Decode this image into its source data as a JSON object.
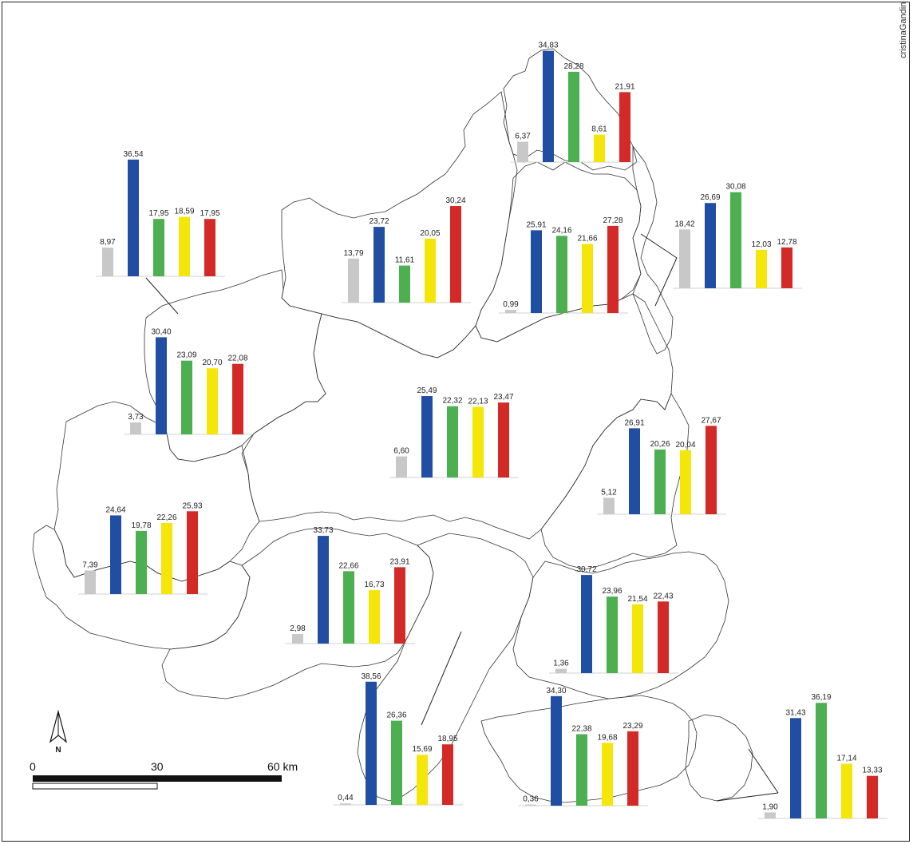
{
  "credit": "cristinaGandini 06",
  "north_label": "N",
  "scale": {
    "labels": [
      "0",
      "30",
      "60 km"
    ]
  },
  "series_colors": [
    "#c8c8c8",
    "#1f4ea3",
    "#4caf50",
    "#f5e60a",
    "#d42a27"
  ],
  "districts": [
    {
      "id": "north-top",
      "values": [
        "6,37",
        "34,83",
        "28,28",
        "8,61",
        "21,91"
      ],
      "nums": [
        6.37,
        34.83,
        28.28,
        8.61,
        21.91
      ]
    },
    {
      "id": "northwest",
      "values": [
        "8,97",
        "36,54",
        "17,95",
        "18,59",
        "17,95"
      ],
      "nums": [
        8.97,
        36.54,
        17.95,
        18.59,
        17.95
      ]
    },
    {
      "id": "north-center",
      "values": [
        "13,79",
        "23,72",
        "11,61",
        "20,05",
        "30,24"
      ],
      "nums": [
        13.79,
        23.72,
        11.61,
        20.05,
        30.24
      ]
    },
    {
      "id": "north-east-inner",
      "values": [
        "0,99",
        "25,91",
        "24,16",
        "21,66",
        "27,28"
      ],
      "nums": [
        0.99,
        25.91,
        24.16,
        21.66,
        27.28
      ]
    },
    {
      "id": "northeast",
      "values": [
        "18,42",
        "26,69",
        "30,08",
        "12,03",
        "12,78"
      ],
      "nums": [
        18.42,
        26.69,
        30.08,
        12.03,
        12.78
      ]
    },
    {
      "id": "west",
      "values": [
        "3,73",
        "30,40",
        "23,09",
        "20,70",
        "22,08"
      ],
      "nums": [
        3.73,
        30.4,
        23.09,
        20.7,
        22.08
      ]
    },
    {
      "id": "center",
      "values": [
        "6,60",
        "25,49",
        "22,32",
        "22,13",
        "23,47"
      ],
      "nums": [
        6.6,
        25.49,
        22.32,
        22.13,
        23.47
      ]
    },
    {
      "id": "east",
      "values": [
        "5,12",
        "26,91",
        "20,26",
        "20,04",
        "27,67"
      ],
      "nums": [
        5.12,
        26.91,
        20.26,
        20.04,
        27.67
      ]
    },
    {
      "id": "southwest",
      "values": [
        "7,39",
        "24,64",
        "19,78",
        "22,26",
        "25,93"
      ],
      "nums": [
        7.39,
        24.64,
        19.78,
        22.26,
        25.93
      ]
    },
    {
      "id": "south-center",
      "values": [
        "2,98",
        "33,73",
        "22,66",
        "16,73",
        "23,91"
      ],
      "nums": [
        2.98,
        33.73,
        22.66,
        16.73,
        23.91
      ]
    },
    {
      "id": "southeast-upper",
      "values": [
        "1,36",
        "30,72",
        "23,96",
        "21,54",
        "22,43"
      ],
      "nums": [
        1.36,
        30.72,
        23.96,
        21.54,
        22.43
      ]
    },
    {
      "id": "south",
      "values": [
        "0,44",
        "38,56",
        "26,36",
        "15,69",
        "18,95"
      ],
      "nums": [
        0.44,
        38.56,
        26.36,
        15.69,
        18.95
      ]
    },
    {
      "id": "south-bottom",
      "values": [
        "0,36",
        "34,30",
        "22,38",
        "19,68",
        "23,29"
      ],
      "nums": [
        0.36,
        34.3,
        22.38,
        19.68,
        23.29
      ]
    },
    {
      "id": "southeast",
      "values": [
        "1,90",
        "31,43",
        "36,19",
        "17,14",
        "13,33"
      ],
      "nums": [
        1.9,
        31.43,
        36.19,
        17.14,
        13.33
      ]
    }
  ]
}
